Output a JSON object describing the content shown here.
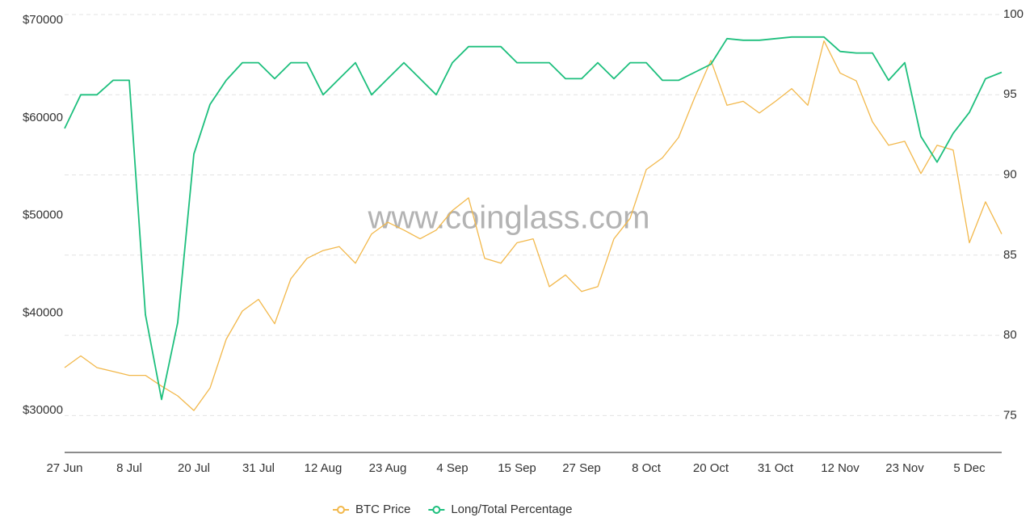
{
  "chart_data": {
    "type": "line",
    "watermark": "www.coinglass.com",
    "categories": [
      "27 Jun",
      null,
      null,
      null,
      "8 Jul",
      null,
      null,
      null,
      "20 Jul",
      null,
      null,
      null,
      "31 Jul",
      null,
      null,
      null,
      "12 Aug",
      null,
      null,
      null,
      "23 Aug",
      null,
      null,
      null,
      "4 Sep",
      null,
      null,
      null,
      "15 Sep",
      null,
      null,
      null,
      "27 Sep",
      null,
      null,
      null,
      "8 Oct",
      null,
      null,
      null,
      "20 Oct",
      null,
      null,
      null,
      "31 Oct",
      null,
      null,
      null,
      "12 Nov",
      null,
      null,
      null,
      "23 Nov",
      null,
      null,
      null,
      "5 Dec",
      null,
      null
    ],
    "series": [
      {
        "name": "BTC Price",
        "color": "#f2b84b",
        "axis": "y",
        "values": [
          34400,
          35600,
          34400,
          34000,
          33600,
          33600,
          32500,
          31500,
          30000,
          32300,
          37300,
          40200,
          41400,
          38900,
          43500,
          45600,
          46400,
          46800,
          45100,
          48100,
          49300,
          48500,
          47600,
          48500,
          50500,
          51800,
          45600,
          45100,
          47200,
          47600,
          42700,
          43900,
          42200,
          42700,
          47600,
          49700,
          54700,
          55900,
          58000,
          62100,
          65900,
          61300,
          61700,
          60500,
          61700,
          63000,
          61300,
          67900,
          64600,
          63800,
          59600,
          57200,
          57600,
          54300,
          57200,
          56700,
          47200,
          51400,
          48100
        ]
      },
      {
        "name": "Long/Total Percentage",
        "color": "#1dbf7d",
        "axis": "y2",
        "values": [
          92.9,
          95,
          95,
          95.9,
          95.9,
          81.3,
          76,
          80.8,
          91.3,
          94.4,
          95.9,
          97,
          97,
          96,
          97,
          97,
          95,
          96,
          97,
          95,
          96,
          97,
          96,
          95,
          97,
          98,
          98,
          98,
          97,
          97,
          97,
          96,
          96,
          97,
          96,
          97,
          97,
          95.9,
          95.9,
          96.4,
          96.9,
          98.5,
          98.4,
          98.4,
          98.5,
          98.6,
          98.6,
          98.6,
          97.7,
          97.6,
          97.6,
          95.9,
          97,
          92.4,
          90.8,
          92.6,
          93.9,
          96,
          96.4
        ]
      }
    ],
    "ylim": [
      25700,
      70600
    ],
    "yticks": [
      {
        "value": 30000,
        "label": "$30000"
      },
      {
        "value": 40000,
        "label": "$40000"
      },
      {
        "value": 50000,
        "label": "$50000"
      },
      {
        "value": 60000,
        "label": "$60000"
      },
      {
        "value": 70000,
        "label": "$70000"
      }
    ],
    "y2lim": [
      72.7,
      100
    ],
    "y2ticks": [
      75,
      80,
      85,
      90,
      95,
      100
    ],
    "grid": true
  }
}
